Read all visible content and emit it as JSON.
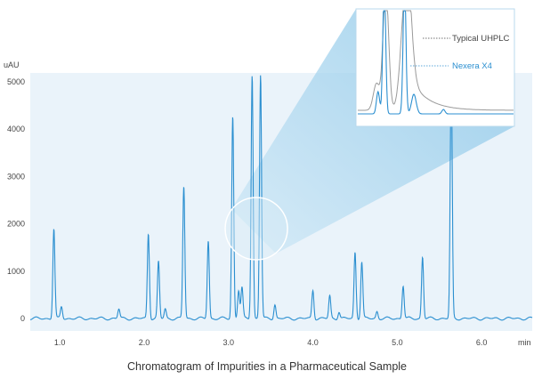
{
  "chart_data": {
    "type": "line",
    "title": "Chromatogram of Impurities in a Pharmaceutical Sample",
    "ylabel": "uAU",
    "xlabel": "min",
    "xlim": [
      0.65,
      6.6
    ],
    "ylim": [
      -150,
      5150
    ],
    "xticks": [
      1.0,
      2.0,
      3.0,
      4.0,
      5.0,
      6.0
    ],
    "yticks": [
      0,
      1000,
      2000,
      3000,
      4000,
      5000
    ],
    "grid": false,
    "colors": {
      "main": "#2b8fd0",
      "reference": "#9a9a9a",
      "panel": "#eaf3fa",
      "zoom": "#a9d6ee"
    },
    "peaks": [
      {
        "x": 0.93,
        "y": 1900
      },
      {
        "x": 1.02,
        "y": 250
      },
      {
        "x": 1.7,
        "y": 200
      },
      {
        "x": 2.05,
        "y": 1800
      },
      {
        "x": 2.17,
        "y": 1200
      },
      {
        "x": 2.25,
        "y": 200
      },
      {
        "x": 2.47,
        "y": 2800
      },
      {
        "x": 2.76,
        "y": 1650
      },
      {
        "x": 3.05,
        "y": 4280
      },
      {
        "x": 3.12,
        "y": 600
      },
      {
        "x": 3.16,
        "y": 650
      },
      {
        "x": 3.28,
        "y": 5150
      },
      {
        "x": 3.38,
        "y": 5150
      },
      {
        "x": 3.55,
        "y": 300
      },
      {
        "x": 4.0,
        "y": 600
      },
      {
        "x": 4.2,
        "y": 480
      },
      {
        "x": 4.31,
        "y": 150
      },
      {
        "x": 4.5,
        "y": 1400
      },
      {
        "x": 4.58,
        "y": 1200
      },
      {
        "x": 4.76,
        "y": 150
      },
      {
        "x": 5.07,
        "y": 700
      },
      {
        "x": 5.3,
        "y": 1300
      },
      {
        "x": 5.64,
        "y": 5150
      }
    ],
    "inset": {
      "series": [
        {
          "name": "Typical UHPLC",
          "color": "#9a9a9a"
        },
        {
          "name": "Nexera X4",
          "color": "#2b8fd0"
        }
      ]
    }
  }
}
